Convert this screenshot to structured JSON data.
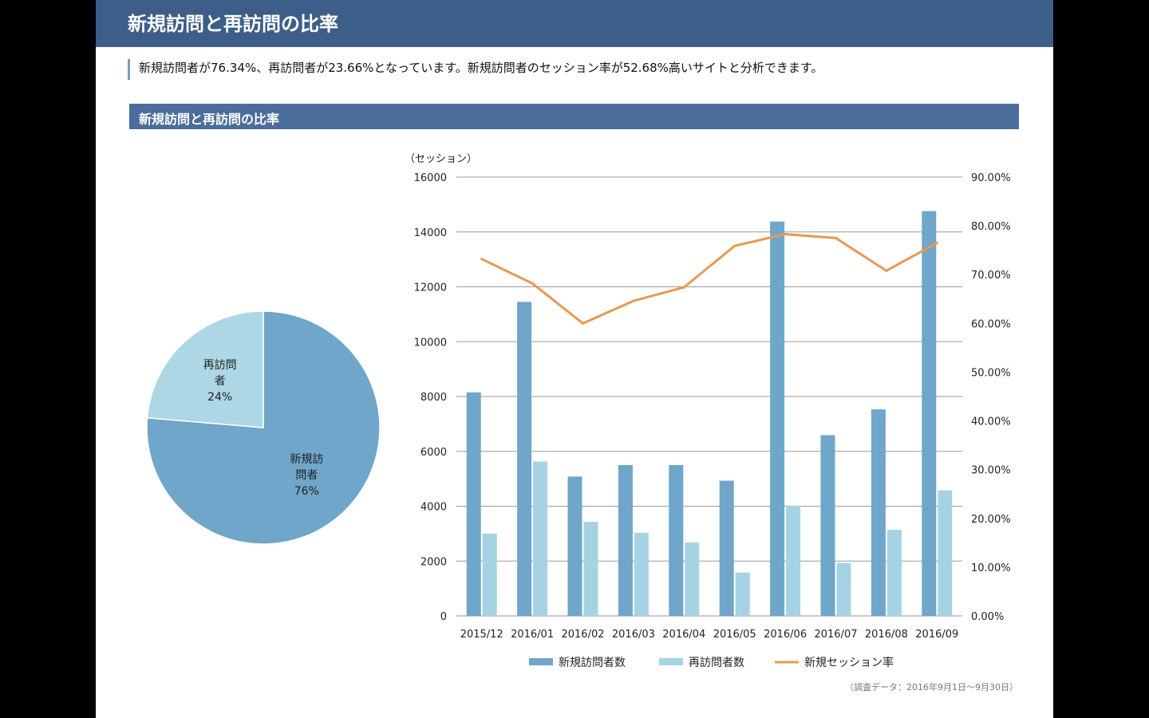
{
  "header": {
    "title": "新規訪問と再訪問の比率"
  },
  "summary": {
    "text": "新規訪問者が76.34%、再訪問者が23.66%となっています。新規訪問者のセッション率が52.68%高いサイトと分析できます。"
  },
  "section": {
    "title": "新規訪問と再訪問の比率"
  },
  "colors": {
    "new_visitors": "#6fa6c9",
    "returning_visitors": "#a6d3e4",
    "new_session_rate": "#e8994f",
    "pie_returning": "#add7e4"
  },
  "chart_data": [
    {
      "type": "pie",
      "slices": [
        {
          "label_lines": [
            "新規訪",
            "問者"
          ],
          "percent_label": "76%",
          "value": 76.34
        },
        {
          "label_lines": [
            "再訪問",
            "者"
          ],
          "percent_label": "24%",
          "value": 23.66
        }
      ]
    },
    {
      "type": "bar",
      "y_unit_label": "（セッション）",
      "categories": [
        "2015/12",
        "2016/01",
        "2016/02",
        "2016/03",
        "2016/04",
        "2016/05",
        "2016/06",
        "2016/07",
        "2016/08",
        "2016/09"
      ],
      "ylim": [
        0,
        16000
      ],
      "y_ticks": [
        "0",
        "2000",
        "4000",
        "6000",
        "8000",
        "10000",
        "12000",
        "14000",
        "16000"
      ],
      "y2lim": [
        0,
        90
      ],
      "y2_ticks": [
        "0.00%",
        "10.00%",
        "20.00%",
        "30.00%",
        "40.00%",
        "50.00%",
        "60.00%",
        "70.00%",
        "80.00%",
        "90.00%"
      ],
      "grid": true,
      "legend_position": "bottom",
      "series": [
        {
          "name": "新規訪問者数",
          "type": "bar",
          "axis": "left",
          "values": [
            8150,
            11450,
            5080,
            5500,
            5500,
            4930,
            14380,
            6590,
            7530,
            14760
          ]
        },
        {
          "name": "再訪問者数",
          "type": "bar",
          "axis": "left",
          "values": [
            3000,
            5630,
            3430,
            3030,
            2680,
            1580,
            4020,
            1930,
            3140,
            4580
          ]
        },
        {
          "name": "新規セッション率",
          "type": "line",
          "axis": "right",
          "values": [
            73.2,
            68.2,
            60.0,
            64.6,
            67.4,
            75.9,
            78.3,
            77.5,
            70.8,
            76.5
          ]
        }
      ]
    }
  ],
  "source_note": "（調査データ：2016年9月1日～9月30日）"
}
